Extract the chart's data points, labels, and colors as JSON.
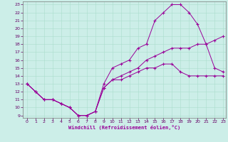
{
  "xlabel": "Windchill (Refroidissement éolien,°C)",
  "bg_color": "#cceee8",
  "grid_color": "#aaddcc",
  "line_color": "#990099",
  "xlim": [
    -0.5,
    23.3
  ],
  "ylim": [
    8.7,
    23.4
  ],
  "xticks": [
    0,
    1,
    2,
    3,
    4,
    5,
    6,
    7,
    8,
    9,
    10,
    11,
    12,
    13,
    14,
    15,
    16,
    17,
    18,
    19,
    20,
    21,
    22,
    23
  ],
  "yticks": [
    9,
    10,
    11,
    12,
    13,
    14,
    15,
    16,
    17,
    18,
    19,
    20,
    21,
    22,
    23
  ],
  "line1_x": [
    0,
    1,
    2,
    3,
    4,
    5,
    6,
    7,
    8,
    9,
    10,
    11,
    12,
    13,
    14,
    15,
    16,
    17,
    18,
    19,
    20,
    21,
    22,
    23
  ],
  "line1_y": [
    13,
    12,
    11,
    11,
    10.5,
    10,
    9,
    9,
    9.5,
    13,
    15,
    15.5,
    16,
    17.5,
    18,
    21,
    22,
    23,
    23,
    22,
    20.5,
    18,
    15,
    14.5
  ],
  "line2_x": [
    0,
    1,
    2,
    3,
    4,
    5,
    6,
    7,
    8,
    9,
    10,
    11,
    12,
    13,
    14,
    15,
    16,
    17,
    18,
    19,
    20,
    21,
    22,
    23
  ],
  "line2_y": [
    13,
    12,
    11,
    11,
    10.5,
    10,
    9,
    9,
    9.5,
    12.5,
    13.5,
    14,
    14.5,
    15,
    16,
    16.5,
    17,
    17.5,
    17.5,
    17.5,
    18,
    18,
    18.5,
    19
  ],
  "line3_x": [
    0,
    1,
    2,
    3,
    4,
    5,
    6,
    7,
    8,
    9,
    10,
    11,
    12,
    13,
    14,
    15,
    16,
    17,
    18,
    19,
    20,
    21,
    22,
    23
  ],
  "line3_y": [
    13,
    12,
    11,
    11,
    10.5,
    10,
    9,
    9,
    9.5,
    12.5,
    13.5,
    13.5,
    14,
    14.5,
    15,
    15,
    15.5,
    15.5,
    14.5,
    14,
    14,
    14,
    14,
    14
  ]
}
